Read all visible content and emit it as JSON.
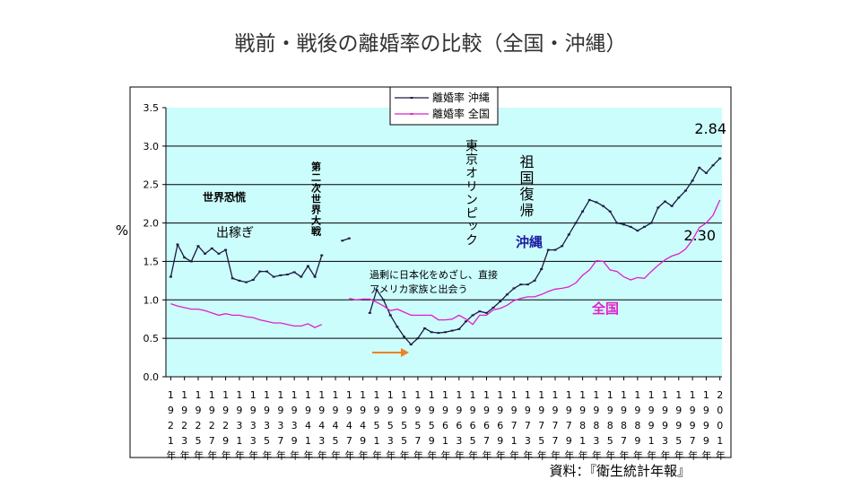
{
  "chart_data": {
    "type": "line",
    "title": "戦前・戦後の離婚率の比較（全国・沖縄）",
    "y_label": "%",
    "source": "資料：『衛生統計年報』",
    "legend": "top",
    "grid": true,
    "background": "#ccfdfd",
    "ylim": [
      0,
      3.5
    ],
    "yticks": [
      {
        "value": 0,
        "label": "0.0"
      },
      0.5,
      {
        "value": 1,
        "label": "1.0"
      },
      1.5,
      {
        "value": 2,
        "label": "2.0"
      },
      2.5,
      {
        "value": 3,
        "label": "3.0"
      },
      3.5
    ],
    "xlim": [
      1920.3,
      2001.3
    ],
    "xticks": [
      {
        "value": 1921,
        "label": "1921年"
      },
      {
        "value": 1923,
        "label": "1923年"
      },
      {
        "value": 1925,
        "label": "1925年"
      },
      {
        "value": 1927,
        "label": "1927年"
      },
      {
        "value": 1929,
        "label": "1929年"
      },
      {
        "value": 1931,
        "label": "1931年"
      },
      {
        "value": 1933,
        "label": "1933年"
      },
      {
        "value": 1935,
        "label": "1935年"
      },
      {
        "value": 1937,
        "label": "1937年"
      },
      {
        "value": 1939,
        "label": "1939年"
      },
      {
        "value": 1941,
        "label": "1941年"
      },
      {
        "value": 1943,
        "label": "1943年"
      },
      {
        "value": 1945,
        "label": "1945年"
      },
      {
        "value": 1947,
        "label": "1947年"
      },
      {
        "value": 1949,
        "label": "1949年"
      },
      {
        "value": 1951,
        "label": "1951年"
      },
      {
        "value": 1953,
        "label": "1953年"
      },
      {
        "value": 1955,
        "label": "1955年"
      },
      {
        "value": 1957,
        "label": "1957年"
      },
      {
        "value": 1959,
        "label": "1959年"
      },
      {
        "value": 1961,
        "label": "1961年"
      },
      {
        "value": 1963,
        "label": "1963年"
      },
      {
        "value": 1965,
        "label": "1965年"
      },
      {
        "value": 1967,
        "label": "1967年"
      },
      {
        "value": 1969,
        "label": "1969年"
      },
      {
        "value": 1971,
        "label": "1971年"
      },
      {
        "value": 1973,
        "label": "1973年"
      },
      {
        "value": 1975,
        "label": "1975年"
      },
      {
        "value": 1977,
        "label": "1977年"
      },
      {
        "value": 1979,
        "label": "1979年"
      },
      {
        "value": 1981,
        "label": "1981年"
      },
      {
        "value": 1983,
        "label": "1983年"
      },
      {
        "value": 1985,
        "label": "1985年"
      },
      {
        "value": 1987,
        "label": "1987年"
      },
      {
        "value": 1989,
        "label": "1989年"
      },
      {
        "value": 1991,
        "label": "1991年"
      },
      {
        "value": 1993,
        "label": "1993年"
      },
      {
        "value": 1995,
        "label": "1995年"
      },
      {
        "value": 1997,
        "label": "1997年"
      },
      {
        "value": 1999,
        "label": "1999年"
      },
      {
        "value": 2001,
        "label": "2001年"
      }
    ],
    "x": [
      1921,
      1922,
      1923,
      1924,
      1925,
      1926,
      1927,
      1928,
      1929,
      1930,
      1931,
      1932,
      1933,
      1934,
      1935,
      1936,
      1937,
      1938,
      1939,
      1940,
      1941,
      1942,
      1943,
      1944,
      1945,
      1946,
      1947,
      1948,
      1949,
      1950,
      1951,
      1952,
      1953,
      1954,
      1955,
      1956,
      1957,
      1958,
      1959,
      1960,
      1961,
      1962,
      1963,
      1964,
      1965,
      1966,
      1967,
      1968,
      1969,
      1970,
      1971,
      1972,
      1973,
      1974,
      1975,
      1976,
      1977,
      1978,
      1979,
      1980,
      1981,
      1982,
      1983,
      1984,
      1985,
      1986,
      1987,
      1988,
      1989,
      1990,
      1991,
      1992,
      1993,
      1994,
      1995,
      1996,
      1997,
      1998,
      1999,
      2000,
      2001
    ],
    "series": [
      {
        "name": "離婚率 沖縄",
        "color": "#1a1a40",
        "label": "沖縄",
        "label_color": "#1a1aa0",
        "values": [
          1.3,
          1.72,
          1.55,
          1.5,
          1.7,
          1.6,
          1.67,
          1.6,
          1.65,
          1.28,
          1.25,
          1.23,
          1.26,
          1.37,
          1.37,
          1.3,
          1.32,
          1.33,
          1.36,
          1.3,
          1.44,
          1.3,
          1.58,
          null,
          null,
          1.77,
          1.8,
          null,
          null,
          0.83,
          1.13,
          1.0,
          0.8,
          0.65,
          0.52,
          0.42,
          0.5,
          0.63,
          0.58,
          0.57,
          0.58,
          0.6,
          0.62,
          0.72,
          0.8,
          0.85,
          0.83,
          0.9,
          0.98,
          1.07,
          1.15,
          1.2,
          1.2,
          1.25,
          1.4,
          1.65,
          1.65,
          1.7,
          1.85,
          2.0,
          2.15,
          2.3,
          2.27,
          2.22,
          2.15,
          2.0,
          1.98,
          1.95,
          1.9,
          1.95,
          2.0,
          2.2,
          2.28,
          2.22,
          2.33,
          2.42,
          2.55,
          2.72,
          2.65,
          2.75,
          2.84
        ]
      },
      {
        "name": "離婚率 全国",
        "color": "#e020c8",
        "label": "全国",
        "label_color": "#e020c8",
        "values": [
          0.95,
          0.92,
          0.9,
          0.88,
          0.88,
          0.86,
          0.83,
          0.8,
          0.82,
          0.8,
          0.8,
          0.78,
          0.77,
          0.74,
          0.72,
          0.7,
          0.7,
          0.68,
          0.66,
          0.66,
          0.69,
          0.64,
          0.68,
          null,
          null,
          null,
          1.02,
          1.0,
          1.01,
          1.01,
          0.97,
          0.92,
          0.86,
          0.88,
          0.84,
          0.8,
          0.8,
          0.8,
          0.8,
          0.74,
          0.74,
          0.75,
          0.8,
          0.75,
          0.68,
          0.8,
          0.8,
          0.87,
          0.89,
          0.93,
          0.99,
          1.02,
          1.04,
          1.04,
          1.07,
          1.11,
          1.14,
          1.15,
          1.17,
          1.22,
          1.32,
          1.39,
          1.51,
          1.5,
          1.39,
          1.37,
          1.3,
          1.26,
          1.29,
          1.28,
          1.37,
          1.45,
          1.52,
          1.57,
          1.6,
          1.66,
          1.78,
          1.94,
          2.0,
          2.1,
          2.3
        ],
        "value_labels": [
          null,
          null,
          null,
          null,
          null,
          null,
          null,
          null,
          null,
          null,
          null,
          null,
          null,
          null,
          null,
          null,
          null,
          null,
          null,
          null,
          null,
          null,
          null,
          null,
          null,
          null,
          null,
          null,
          null,
          null,
          null,
          null,
          null,
          null,
          null,
          null,
          null,
          null,
          null,
          null,
          null,
          null,
          null,
          null,
          null,
          null,
          null,
          null,
          null,
          null,
          null,
          null,
          null,
          null,
          null,
          null,
          null,
          null,
          null,
          null,
          null,
          null,
          null,
          null,
          null,
          null,
          null,
          null,
          null,
          null,
          null,
          null,
          null,
          null,
          null,
          null,
          null,
          null,
          null,
          null,
          "2.30"
        ]
      }
    ],
    "annotations": [
      "世界恐慌",
      "出稼ぎ",
      "第二次世界大戦",
      "東京オリンピック",
      "祖国復帰",
      "過剰に日本化をめざし、直接",
      "アメリカ家族と出会う"
    ]
  }
}
